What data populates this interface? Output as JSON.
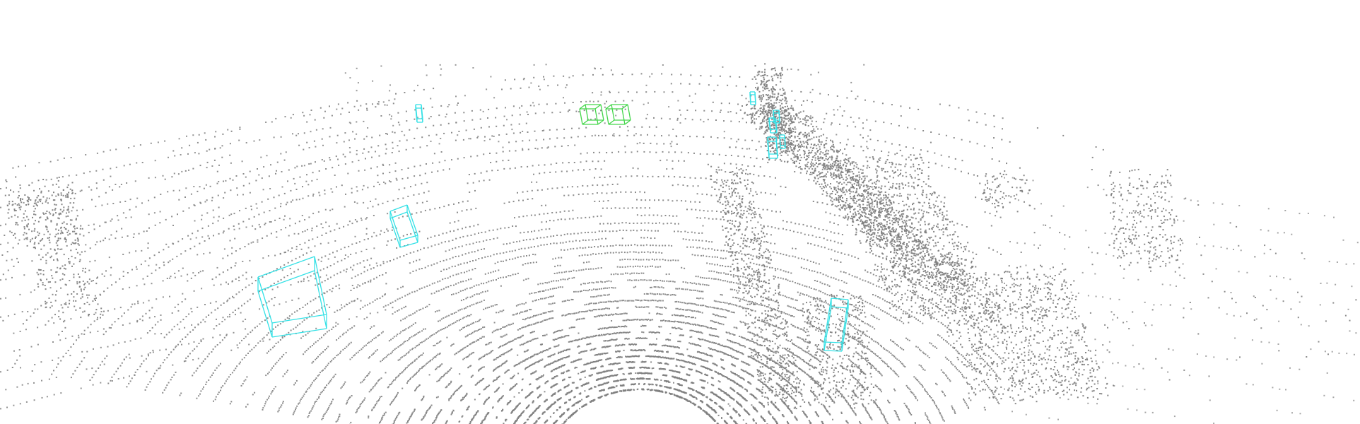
{
  "scene": {
    "background": "#ffffff",
    "point_color": "#808080",
    "box_colors": {
      "cyan": "#35e1e6",
      "green": "#43d64a"
    },
    "box_count": {
      "cyan": 9,
      "green": 2
    }
  }
}
